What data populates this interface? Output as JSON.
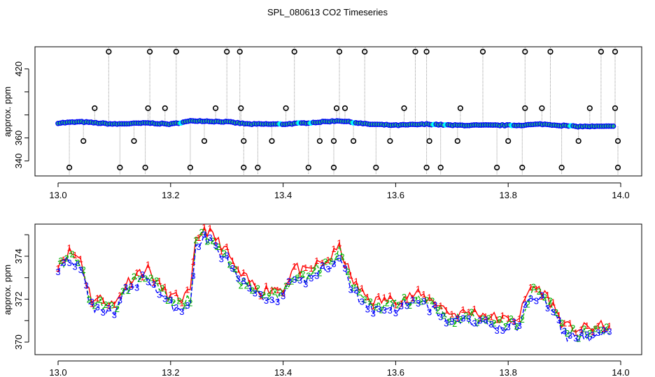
{
  "title": "SPL_080613  CO2 Timeseries",
  "colors": {
    "s1": "#ff0000",
    "s2": "#00b300",
    "s3": "#0000ff",
    "cyan": "#00ffff",
    "spike": "#000000",
    "drop": "#999999"
  },
  "chart_data": [
    {
      "type": "scatter",
      "title": "SPL_080613  CO2 Timeseries",
      "ylabel": "approx. ppm",
      "xlim": [
        13.0,
        14.0
      ],
      "ylim": [
        330,
        435
      ],
      "xticks": [
        "13.0",
        "13.2",
        "13.4",
        "13.6",
        "13.8",
        "14.0"
      ],
      "yticks": [
        "340",
        "360",
        "380",
        "400",
        "420"
      ],
      "yticks_labeled": [
        "340",
        "360",
        "420"
      ],
      "baseline": {
        "name": "",
        "x": [
          13.0,
          13.04,
          13.1,
          13.16,
          13.2,
          13.24,
          13.3,
          13.34,
          13.4,
          13.44,
          13.5,
          13.55,
          13.6,
          13.66,
          13.7,
          13.76,
          13.82,
          13.86,
          13.92,
          13.99
        ],
        "y": [
          373,
          374,
          372,
          373,
          372,
          375,
          374,
          372,
          372,
          373,
          375,
          372,
          371,
          372,
          371,
          371,
          371,
          372,
          370,
          370
        ]
      },
      "spikes_high": [
        13.09,
        13.163,
        13.21,
        13.3,
        13.323,
        13.42,
        13.5,
        13.545,
        13.635,
        13.655,
        13.755,
        13.83,
        13.875,
        13.965,
        13.99
      ],
      "spikes_mid": [
        13.065,
        13.16,
        13.19,
        13.28,
        13.325,
        13.405,
        13.495,
        13.51,
        13.615,
        13.715,
        13.83,
        13.86,
        13.945,
        13.99
      ],
      "drops_low": [
        13.02,
        13.11,
        13.155,
        13.235,
        13.33,
        13.355,
        13.445,
        13.49,
        13.565,
        13.655,
        13.68,
        13.78,
        13.825,
        13.895,
        13.995
      ],
      "drops_mid": [
        13.045,
        13.135,
        13.26,
        13.33,
        13.38,
        13.465,
        13.49,
        13.525,
        13.59,
        13.66,
        13.71,
        13.8,
        13.925,
        13.995
      ]
    },
    {
      "type": "line",
      "title": "",
      "ylabel": "approx. ppm",
      "xlim": [
        13.0,
        14.0
      ],
      "ylim": [
        369.4,
        376.3
      ],
      "xticks": [
        "13.0",
        "13.2",
        "13.4",
        "13.6",
        "13.8",
        "14.0"
      ],
      "yticks": [
        "370",
        "372",
        "374"
      ],
      "series": [
        {
          "marker": "1",
          "x": [],
          "y": []
        },
        {
          "marker": "2",
          "x": [],
          "y": []
        },
        {
          "marker": "3",
          "x": [],
          "y": []
        }
      ],
      "anchors": {
        "x": [
          13.0,
          13.02,
          13.04,
          13.05,
          13.06,
          13.08,
          13.1,
          13.12,
          13.14,
          13.16,
          13.18,
          13.2,
          13.22,
          13.235,
          13.245,
          13.26,
          13.28,
          13.3,
          13.32,
          13.34,
          13.36,
          13.38,
          13.4,
          13.42,
          13.44,
          13.46,
          13.48,
          13.5,
          13.51,
          13.52,
          13.54,
          13.56,
          13.6,
          13.64,
          13.67,
          13.7,
          13.74,
          13.78,
          13.8,
          13.82,
          13.84,
          13.86,
          13.88,
          13.9,
          13.93,
          13.96,
          13.985
        ],
        "y": [
          373.5,
          374.0,
          373.7,
          372.6,
          371.8,
          371.8,
          371.5,
          372.5,
          373.0,
          373.2,
          372.4,
          371.9,
          371.8,
          372.1,
          374.5,
          375.1,
          374.6,
          374.0,
          373.0,
          372.6,
          372.2,
          372.3,
          372.3,
          373.3,
          373.0,
          373.4,
          373.6,
          374.2,
          373.6,
          372.8,
          372.1,
          371.7,
          371.8,
          372.0,
          371.7,
          371.1,
          371.2,
          370.9,
          370.8,
          371.0,
          372.4,
          372.2,
          371.5,
          370.5,
          370.4,
          370.5,
          370.6
        ]
      }
    }
  ]
}
